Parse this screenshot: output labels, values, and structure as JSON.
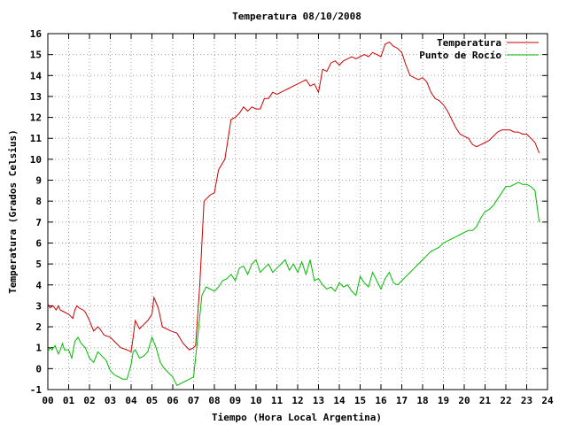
{
  "chart_data": {
    "type": "line",
    "title": "Temperatura 08/10/2008",
    "xlabel": "Tiempo (Hora Local Argentina)",
    "ylabel": "Temperatura (Grados Celsius)",
    "xlim": [
      0,
      24
    ],
    "ylim": [
      -1,
      16
    ],
    "grid": true,
    "legend_position": "top-right",
    "x_ticks": [
      "00",
      "01",
      "02",
      "03",
      "04",
      "05",
      "06",
      "07",
      "08",
      "09",
      "10",
      "11",
      "12",
      "13",
      "14",
      "15",
      "16",
      "17",
      "18",
      "19",
      "20",
      "21",
      "22",
      "23",
      "24"
    ],
    "y_ticks": [
      "-1",
      "0",
      "1",
      "2",
      "3",
      "4",
      "5",
      "6",
      "7",
      "8",
      "9",
      "10",
      "11",
      "12",
      "13",
      "14",
      "15",
      "16"
    ],
    "series": [
      {
        "name": "Temperatura",
        "color": "#cc0000",
        "x": [
          0.0,
          0.1,
          0.25,
          0.4,
          0.5,
          0.6,
          0.8,
          1.0,
          1.2,
          1.3,
          1.4,
          1.5,
          1.7,
          1.8,
          2.0,
          2.2,
          2.4,
          2.5,
          2.7,
          3.0,
          3.2,
          3.5,
          3.8,
          4.0,
          4.1,
          4.2,
          4.3,
          4.4,
          4.6,
          4.8,
          5.0,
          5.1,
          5.3,
          5.5,
          5.7,
          5.9,
          6.2,
          6.5,
          6.8,
          7.0,
          7.1,
          7.3,
          7.5,
          7.8,
          8.0,
          8.2,
          8.5,
          8.8,
          9.0,
          9.2,
          9.4,
          9.6,
          9.8,
          10.0,
          10.2,
          10.4,
          10.6,
          10.8,
          11.0,
          11.2,
          11.4,
          11.6,
          11.8,
          12.0,
          12.2,
          12.4,
          12.6,
          12.8,
          13.0,
          13.2,
          13.4,
          13.6,
          13.8,
          14.0,
          14.2,
          14.4,
          14.6,
          14.8,
          15.0,
          15.2,
          15.4,
          15.6,
          15.8,
          16.0,
          16.2,
          16.4,
          16.6,
          16.8,
          17.0,
          17.2,
          17.4,
          17.6,
          17.8,
          18.0,
          18.2,
          18.4,
          18.6,
          18.8,
          19.0,
          19.2,
          19.4,
          19.6,
          19.8,
          20.0,
          20.2,
          20.4,
          20.6,
          20.8,
          21.0,
          21.2,
          21.4,
          21.6,
          21.8,
          22.0,
          22.2,
          22.4,
          22.6,
          22.8,
          23.0,
          23.2,
          23.4,
          23.6
        ],
        "y": [
          3.1,
          2.9,
          3.0,
          2.8,
          3.0,
          2.8,
          2.7,
          2.6,
          2.4,
          2.8,
          3.0,
          2.9,
          2.8,
          2.7,
          2.3,
          1.8,
          2.0,
          1.9,
          1.6,
          1.5,
          1.3,
          1.0,
          0.9,
          0.8,
          1.5,
          2.3,
          2.1,
          1.9,
          2.1,
          2.3,
          2.6,
          3.4,
          2.9,
          2.0,
          1.9,
          1.8,
          1.7,
          1.2,
          0.9,
          1.0,
          1.1,
          4.0,
          8.0,
          8.3,
          8.4,
          9.5,
          10.0,
          11.9,
          12.0,
          12.2,
          12.5,
          12.3,
          12.5,
          12.4,
          12.4,
          12.9,
          12.9,
          13.2,
          13.1,
          13.2,
          13.3,
          13.4,
          13.5,
          13.6,
          13.7,
          13.8,
          13.5,
          13.6,
          13.2,
          14.3,
          14.2,
          14.6,
          14.7,
          14.5,
          14.7,
          14.8,
          14.9,
          14.8,
          14.9,
          15.0,
          14.9,
          15.1,
          15.0,
          14.9,
          15.5,
          15.6,
          15.4,
          15.3,
          15.1,
          14.5,
          14.0,
          13.9,
          13.8,
          13.9,
          13.7,
          13.2,
          12.9,
          12.8,
          12.6,
          12.3,
          11.9,
          11.5,
          11.2,
          11.1,
          11.0,
          10.7,
          10.6,
          10.7,
          10.8,
          10.9,
          11.1,
          11.3,
          11.4,
          11.4,
          11.4,
          11.3,
          11.3,
          11.2,
          11.2,
          11.0,
          10.8,
          10.3
        ]
      },
      {
        "name": "Punto de Rocío",
        "color": "#00bb00",
        "x": [
          0.0,
          0.1,
          0.2,
          0.35,
          0.5,
          0.6,
          0.7,
          0.8,
          1.0,
          1.15,
          1.3,
          1.45,
          1.6,
          1.8,
          2.0,
          2.2,
          2.4,
          2.6,
          2.8,
          3.0,
          3.2,
          3.4,
          3.6,
          3.8,
          4.0,
          4.1,
          4.2,
          4.4,
          4.6,
          4.8,
          5.0,
          5.2,
          5.4,
          5.6,
          5.8,
          6.0,
          6.2,
          6.4,
          6.6,
          6.8,
          7.0,
          7.2,
          7.4,
          7.6,
          7.8,
          8.0,
          8.2,
          8.4,
          8.6,
          8.8,
          9.0,
          9.2,
          9.4,
          9.6,
          9.8,
          10.0,
          10.2,
          10.4,
          10.6,
          10.8,
          11.0,
          11.2,
          11.4,
          11.6,
          11.8,
          12.0,
          12.2,
          12.4,
          12.6,
          12.8,
          13.0,
          13.2,
          13.4,
          13.6,
          13.8,
          14.0,
          14.2,
          14.4,
          14.6,
          14.8,
          15.0,
          15.2,
          15.4,
          15.6,
          15.8,
          16.0,
          16.2,
          16.4,
          16.6,
          16.8,
          17.0,
          17.2,
          17.4,
          17.6,
          17.8,
          18.0,
          18.2,
          18.4,
          18.6,
          18.8,
          19.0,
          19.2,
          19.4,
          19.6,
          19.8,
          20.0,
          20.2,
          20.4,
          20.6,
          20.8,
          21.0,
          21.2,
          21.4,
          21.6,
          21.8,
          22.0,
          22.2,
          22.4,
          22.6,
          22.8,
          23.0,
          23.2,
          23.4,
          23.6
        ],
        "y": [
          0.8,
          1.0,
          0.9,
          1.1,
          0.7,
          0.9,
          1.2,
          0.9,
          0.9,
          0.5,
          1.3,
          1.5,
          1.2,
          1.0,
          0.5,
          0.3,
          0.8,
          0.6,
          0.4,
          -0.1,
          -0.3,
          -0.4,
          -0.5,
          -0.5,
          0.2,
          0.8,
          0.9,
          0.5,
          0.6,
          0.8,
          1.5,
          1.0,
          0.3,
          0.0,
          -0.2,
          -0.4,
          -0.8,
          -0.7,
          -0.6,
          -0.5,
          -0.4,
          1.5,
          3.5,
          3.9,
          3.8,
          3.7,
          3.9,
          4.2,
          4.3,
          4.5,
          4.2,
          4.8,
          4.9,
          4.5,
          5.0,
          5.2,
          4.6,
          4.8,
          5.0,
          4.6,
          4.8,
          5.0,
          5.2,
          4.7,
          5.0,
          4.6,
          5.1,
          4.5,
          5.2,
          4.2,
          4.3,
          4.0,
          3.8,
          3.9,
          3.7,
          4.1,
          3.9,
          4.0,
          3.7,
          3.5,
          4.4,
          4.1,
          3.9,
          4.6,
          4.2,
          3.8,
          4.3,
          4.6,
          4.1,
          4.0,
          4.2,
          4.4,
          4.6,
          4.8,
          5.0,
          5.2,
          5.4,
          5.6,
          5.7,
          5.8,
          6.0,
          6.1,
          6.2,
          6.3,
          6.4,
          6.5,
          6.6,
          6.6,
          6.8,
          7.2,
          7.5,
          7.6,
          7.8,
          8.1,
          8.4,
          8.7,
          8.7,
          8.8,
          8.9,
          8.8,
          8.8,
          8.7,
          8.5,
          7.0
        ]
      }
    ]
  }
}
